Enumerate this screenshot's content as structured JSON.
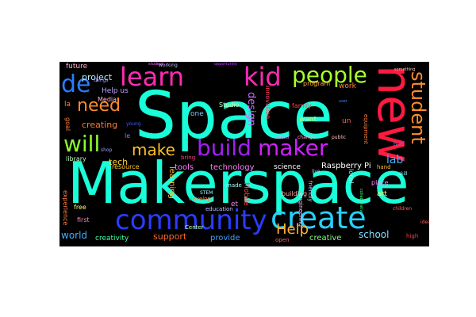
{
  "cloud": {
    "words": [
      {
        "key": "space",
        "text": "Space",
        "color": "#19ffd9"
      },
      {
        "key": "makerspace",
        "text": "Makerspace",
        "color": "#19ffd9"
      },
      {
        "key": "new",
        "text": "new",
        "color": "#ff1a40"
      },
      {
        "key": "community",
        "text": "community",
        "color": "#2a3cff"
      },
      {
        "key": "create",
        "text": "create",
        "color": "#26d0ff"
      },
      {
        "key": "build",
        "text": "build",
        "color": "#a020f0"
      },
      {
        "key": "maker",
        "text": "maker",
        "color": "#d020ff"
      },
      {
        "key": "learn",
        "text": "learn",
        "color": "#ff2bb5"
      },
      {
        "key": "kid",
        "text": "kid",
        "color": "#ff2bb5"
      },
      {
        "key": "people",
        "text": "people",
        "color": "#a8ff2b"
      },
      {
        "key": "de",
        "text": "de",
        "color": "#2a7cff"
      },
      {
        "key": "will",
        "text": "will",
        "color": "#8bff2b"
      },
      {
        "key": "make",
        "text": "make",
        "color": "#ffc02b"
      },
      {
        "key": "need",
        "text": "need",
        "color": "#ff8c2b"
      },
      {
        "key": "student",
        "text": "student",
        "color": "#ff8c2b"
      },
      {
        "key": "help_big",
        "text": "Help",
        "color": "#ffb02b"
      },
      {
        "key": "project",
        "text": "project",
        "color": "#b0f0ff"
      },
      {
        "key": "design",
        "text": "design",
        "color": "#d06aff"
      },
      {
        "key": "lab",
        "text": "lab",
        "color": "#40b0ff"
      },
      {
        "key": "school",
        "text": "school",
        "color": "#80e0ff"
      },
      {
        "key": "creating",
        "text": "creating",
        "color": "#ff7a2b"
      },
      {
        "key": "tech",
        "text": "tech",
        "color": "#ffd02b"
      },
      {
        "key": "world",
        "text": "world",
        "color": "#40b0ff"
      },
      {
        "key": "support",
        "text": "support",
        "color": "#ff6a2b"
      },
      {
        "key": "creative",
        "text": "creative",
        "color": "#80ff80"
      },
      {
        "key": "provide",
        "text": "provide",
        "color": "#40a0ff"
      },
      {
        "key": "raspberry",
        "text": "Raspberry Pi",
        "color": "#ffffff"
      },
      {
        "key": "science",
        "text": "science",
        "color": "#ffffff"
      },
      {
        "key": "technology",
        "text": "technology",
        "color": "#ff80ff"
      },
      {
        "key": "tools",
        "text": "tools",
        "color": "#ff80ff"
      },
      {
        "key": "learning",
        "text": "learning",
        "color": "#ffc02b"
      },
      {
        "key": "creativity",
        "text": "creativity",
        "color": "#40ffa0"
      },
      {
        "key": "future",
        "text": "future",
        "color": "#ffb0d0"
      },
      {
        "key": "help_us",
        "text": "Help us",
        "color": "#c0a0ff"
      },
      {
        "key": "media",
        "text": "Media",
        "color": "#ffb0d0"
      },
      {
        "key": "la",
        "text": "la",
        "color": "#ff8040"
      },
      {
        "key": "le",
        "text": "le",
        "color": "#8080ff"
      },
      {
        "key": "goal",
        "text": "goal",
        "color": "#ff8040"
      },
      {
        "key": "library",
        "text": "library",
        "color": "#c0ffc0"
      },
      {
        "key": "resource",
        "text": "resource",
        "color": "#ffc02b"
      },
      {
        "key": "family",
        "text": "family",
        "color": "#ff4040"
      },
      {
        "key": "want",
        "text": "want",
        "color": "#c0ff80"
      },
      {
        "key": "un",
        "text": "un",
        "color": "#ff6060"
      },
      {
        "key": "work",
        "text": "work",
        "color": "#ff8040"
      },
      {
        "key": "program",
        "text": "program",
        "color": "#ffb040"
      },
      {
        "key": "innovation",
        "text": "innovation",
        "color": "#ff4060"
      },
      {
        "key": "one",
        "text": "one",
        "color": "#80c0ff"
      },
      {
        "key": "studio",
        "text": "Studio",
        "color": "#c0ffc0"
      },
      {
        "key": "center",
        "text": "Center",
        "color": "#c0ffc0"
      },
      {
        "key": "mobile",
        "text": "Mobile",
        "color": "#ff4040"
      },
      {
        "key": "et",
        "text": "et",
        "color": "#ff80ff"
      },
      {
        "key": "made",
        "text": "made",
        "color": "#a0ffff"
      },
      {
        "key": "building",
        "text": "building",
        "color": "#ffa0a0"
      },
      {
        "key": "local",
        "text": "local",
        "color": "#80ffff"
      },
      {
        "key": "place",
        "text": "place",
        "color": "#ff80ff"
      },
      {
        "key": "art",
        "text": "art",
        "color": "#ffff60"
      },
      {
        "key": "first",
        "text": "first",
        "color": "#ff80c0"
      },
      {
        "key": "free",
        "text": "free",
        "color": "#ffff60"
      },
      {
        "key": "education",
        "text": "education",
        "color": "#c0c0ff"
      },
      {
        "key": "experience",
        "text": "experience",
        "color": "#ff8040"
      },
      {
        "key": "develop",
        "text": "develop",
        "color": "#ff8040"
      },
      {
        "key": "open",
        "text": "open",
        "color": "#ff6060"
      },
      {
        "key": "equipment",
        "text": "equipment",
        "color": "#ff8040"
      },
      {
        "key": "engineering",
        "text": "engineering",
        "color": "#ffc0ff"
      },
      {
        "key": "friendly",
        "text": "friendly",
        "color": "#c0c0ff"
      },
      {
        "key": "hand",
        "text": "hand",
        "color": "#ffc040"
      },
      {
        "key": "high",
        "text": "high",
        "color": "#ff4040"
      },
      {
        "key": "children",
        "text": "children",
        "color": "#ff6060"
      },
      {
        "key": "stem",
        "text": "STEM",
        "color": "#a0ffff"
      },
      {
        "key": "hub",
        "text": "hub",
        "color": "#4080ff"
      },
      {
        "key": "public",
        "text": "public",
        "color": "#ffc0c0"
      },
      {
        "key": "better",
        "text": "better",
        "color": "#ff80ff"
      },
      {
        "key": "change",
        "text": "change",
        "color": "#ffa0c0"
      },
      {
        "key": "something",
        "text": "something",
        "color": "#ffc0c0"
      },
      {
        "key": "things",
        "text": "things",
        "color": "#a0a0ff"
      },
      {
        "key": "bring",
        "text": "bring",
        "color": "#ff4080"
      },
      {
        "key": "live",
        "text": "live",
        "color": "#c0c0ff"
      },
      {
        "key": "collaborative",
        "text": "collaborative",
        "color": "#40ff80"
      },
      {
        "key": "young",
        "text": "young",
        "color": "#4060ff"
      },
      {
        "key": "opportunity",
        "text": "opportunity",
        "color": "#c040ff"
      },
      {
        "key": "working",
        "text": "working",
        "color": "#c0c0ff"
      },
      {
        "key": "shop",
        "text": "shop",
        "color": "#a0a0ff"
      },
      {
        "key": "idea",
        "text": "idea",
        "color": "#ff6060"
      },
      {
        "key": "skill",
        "text": "skill",
        "color": "#80ffff"
      },
      {
        "key": "student2",
        "text": "student",
        "color": "#ff60ff"
      },
      {
        "key": "user",
        "text": "user",
        "color": "#4080ff"
      }
    ]
  }
}
